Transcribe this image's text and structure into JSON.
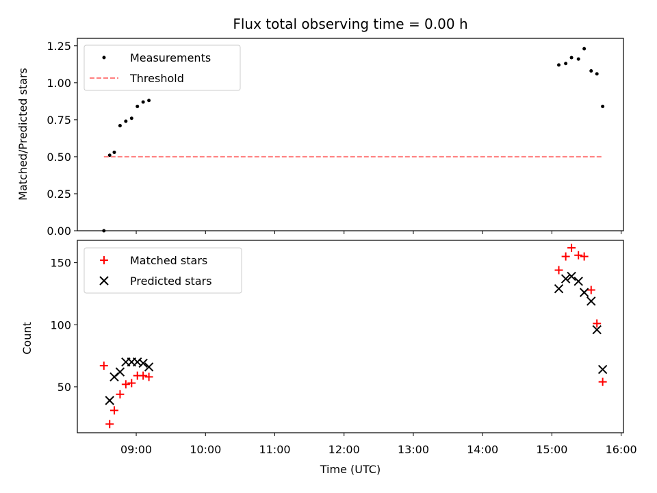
{
  "figure_title": "Flux total observing time = 0.00 h",
  "chart_data": [
    {
      "type": "scatter",
      "ylabel": "Matched/Predicted stars",
      "ylim": [
        0,
        1.3
      ],
      "yticks": [
        0.0,
        0.25,
        0.5,
        0.75,
        1.0,
        1.25
      ],
      "ytick_labels": [
        "0.00",
        "0.25",
        "0.50",
        "0.75",
        "1.00",
        "1.25"
      ],
      "grid": false,
      "legend_position": "top-left",
      "series": [
        {
          "name": "Measurements",
          "kind": "points",
          "color": "#000000",
          "x": [
            "08:32",
            "08:37",
            "08:41",
            "08:46",
            "08:51",
            "08:56",
            "09:01",
            "09:06",
            "09:11",
            "15:06",
            "15:12",
            "15:17",
            "15:23",
            "15:28",
            "15:34",
            "15:39",
            "15:44"
          ],
          "y": [
            0.0,
            0.51,
            0.53,
            0.71,
            0.74,
            0.76,
            0.84,
            0.87,
            0.88,
            1.12,
            1.13,
            1.17,
            1.16,
            1.23,
            1.08,
            1.06,
            0.84
          ]
        },
        {
          "name": "Threshold",
          "kind": "dashed-line",
          "color": "#ff7f7f",
          "x": [
            "08:32",
            "15:44"
          ],
          "y": [
            0.5,
            0.5
          ]
        }
      ]
    },
    {
      "type": "scatter",
      "xlabel": "Time (UTC)",
      "ylabel": "Count",
      "ylim": [
        13,
        168
      ],
      "yticks": [
        50,
        100,
        150
      ],
      "ytick_labels": [
        "50",
        "100",
        "150"
      ],
      "grid": false,
      "legend_position": "top-left",
      "series": [
        {
          "name": "Matched stars",
          "marker": "plus",
          "color": "#ff0000",
          "x": [
            "08:32",
            "08:37",
            "08:41",
            "08:46",
            "08:51",
            "08:56",
            "09:01",
            "09:06",
            "09:11",
            "15:06",
            "15:12",
            "15:17",
            "15:23",
            "15:28",
            "15:34",
            "15:39",
            "15:44"
          ],
          "y": [
            67,
            20,
            31,
            44,
            52,
            53,
            59,
            59,
            58,
            144,
            155,
            162,
            156,
            155,
            128,
            101,
            54
          ]
        },
        {
          "name": "Predicted stars",
          "marker": "x",
          "color": "#000000",
          "x": [
            "08:37",
            "08:41",
            "08:46",
            "08:51",
            "08:56",
            "09:01",
            "09:06",
            "09:11",
            "15:06",
            "15:12",
            "15:17",
            "15:23",
            "15:28",
            "15:34",
            "15:39",
            "15:44"
          ],
          "y": [
            39,
            58,
            62,
            70,
            70,
            70,
            69,
            66,
            129,
            137,
            139,
            135,
            126,
            119,
            96,
            64
          ]
        }
      ]
    }
  ],
  "x_axis": {
    "range": [
      "08:09",
      "16:02"
    ],
    "ticks": [
      "09:00",
      "10:00",
      "11:00",
      "12:00",
      "13:00",
      "14:00",
      "15:00",
      "16:00"
    ]
  }
}
